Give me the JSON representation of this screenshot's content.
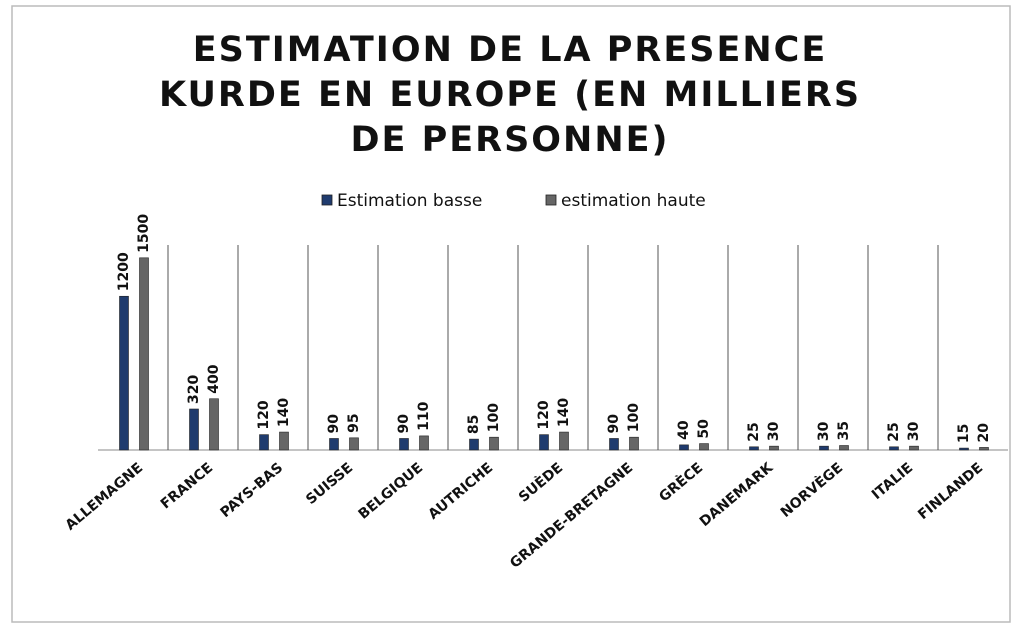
{
  "chart_data": {
    "type": "bar",
    "title": "ESTIMATION DE LA PRESENCE KURDE EN EUROPE (EN MILLIERS DE PERSONNE)",
    "categories": [
      "ALLEMAGNE",
      "FRANCE",
      "PAYS-BAS",
      "SUISSE",
      "BELGIQUE",
      "AUTRICHE",
      "SUÈDE",
      "GRANDE-BRETAGNE",
      "GRÈCE",
      "DANEMARK",
      "NORVÈGE",
      "ITALIE",
      "FINLANDE"
    ],
    "series": [
      {
        "name": "Estimation basse",
        "color": "#1f3b6e",
        "values": [
          1200,
          320,
          120,
          90,
          90,
          85,
          120,
          90,
          40,
          25,
          30,
          25,
          15
        ]
      },
      {
        "name": "estimation haute",
        "color": "#666666",
        "values": [
          1500,
          400,
          140,
          95,
          110,
          100,
          140,
          100,
          50,
          30,
          35,
          30,
          20
        ]
      }
    ],
    "ylim": [
      0,
      1600
    ],
    "legend": "top"
  }
}
